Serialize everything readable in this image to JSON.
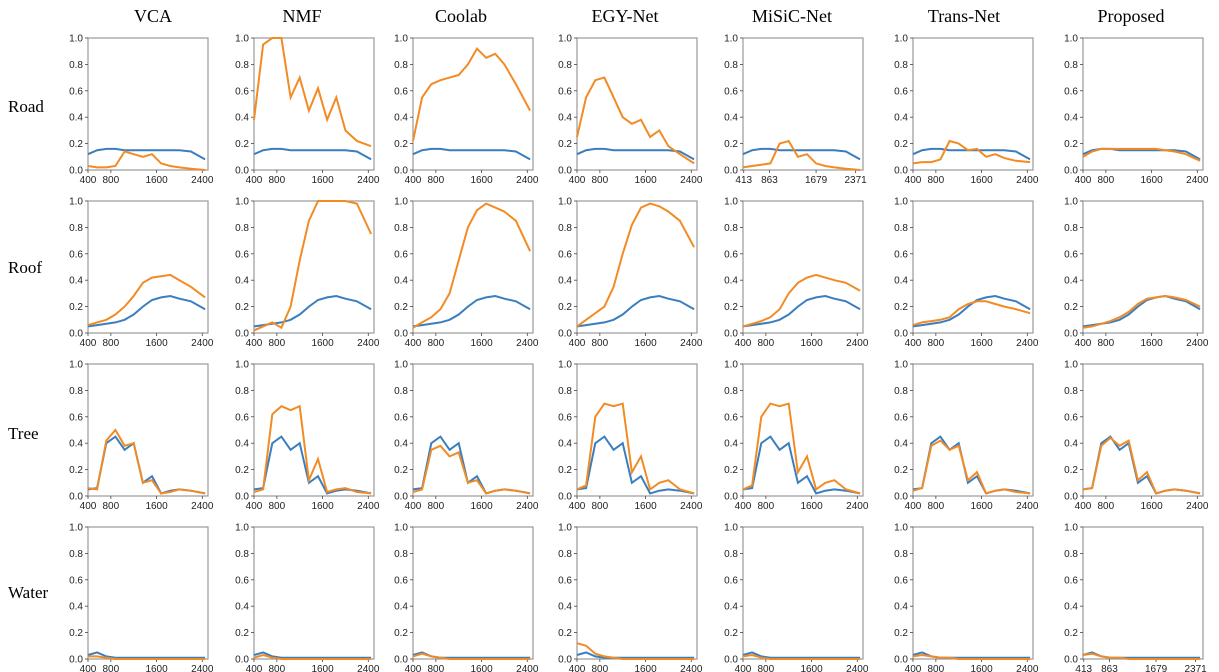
{
  "colors": {
    "reference": "#3a7ebf",
    "estimate": "#f28b24",
    "frame": "#999999"
  },
  "columns": [
    "VCA",
    "NMF",
    "Coolab",
    "EGY-Net",
    "MiSiC-Net",
    "Trans-Net",
    "Proposed"
  ],
  "rows": [
    "Road",
    "Roof",
    "Tree",
    "Water"
  ],
  "chart_data": {
    "type": "line",
    "y_ticks": [
      "0.0",
      "0.2",
      "0.4",
      "0.6",
      "0.8",
      "1.0"
    ],
    "ylim": [
      0,
      1
    ],
    "xlim": [
      400,
      2500
    ],
    "x_ticks_default": [
      "400",
      "800",
      "1600",
      "2400"
    ],
    "x_ticks_alt": [
      "413",
      "863",
      "1679",
      "2371"
    ],
    "reference": {
      "Road": [
        0.12,
        0.15,
        0.16,
        0.16,
        0.15,
        0.15,
        0.15,
        0.15,
        0.15,
        0.15,
        0.15,
        0.14,
        0.08
      ],
      "Roof": [
        0.05,
        0.06,
        0.07,
        0.08,
        0.1,
        0.14,
        0.2,
        0.25,
        0.27,
        0.28,
        0.26,
        0.24,
        0.18
      ],
      "Tree": [
        0.05,
        0.06,
        0.4,
        0.45,
        0.35,
        0.4,
        0.1,
        0.15,
        0.02,
        0.04,
        0.05,
        0.04,
        0.02
      ],
      "Water": [
        0.03,
        0.05,
        0.02,
        0.01,
        0.01,
        0.01,
        0.01,
        0.01,
        0.01,
        0.01,
        0.01,
        0.01,
        0.01
      ]
    },
    "panels": [
      [
        {
          "est": [
            0.03,
            0.02,
            0.02,
            0.03,
            0.14,
            0.12,
            0.1,
            0.12,
            0.05,
            0.03,
            0.02,
            0.01,
            0.0
          ]
        },
        {
          "est": [
            0.06,
            0.08,
            0.1,
            0.14,
            0.2,
            0.28,
            0.38,
            0.42,
            0.43,
            0.44,
            0.4,
            0.35,
            0.27
          ]
        },
        {
          "est": [
            0.06,
            0.05,
            0.42,
            0.5,
            0.38,
            0.4,
            0.1,
            0.12,
            0.02,
            0.03,
            0.05,
            0.04,
            0.02
          ]
        },
        {
          "est": [
            0.02,
            0.02,
            0.01,
            0.0,
            0.0,
            0.0,
            0.0,
            0.0,
            0.0,
            0.0,
            0.0,
            0.0,
            0.0
          ]
        }
      ],
      [
        {
          "est": [
            0.38,
            0.95,
            1.0,
            1.0,
            0.55,
            0.7,
            0.45,
            0.62,
            0.38,
            0.55,
            0.3,
            0.22,
            0.18
          ]
        },
        {
          "est": [
            0.02,
            0.05,
            0.08,
            0.04,
            0.2,
            0.55,
            0.85,
            1.0,
            1.0,
            1.0,
            1.0,
            0.98,
            0.75
          ]
        },
        {
          "est": [
            0.03,
            0.05,
            0.62,
            0.68,
            0.65,
            0.68,
            0.12,
            0.28,
            0.03,
            0.05,
            0.06,
            0.03,
            0.02
          ]
        },
        {
          "est": [
            0.01,
            0.03,
            0.01,
            0.0,
            0.0,
            0.0,
            0.0,
            0.0,
            0.0,
            0.0,
            0.0,
            0.0,
            0.0
          ]
        }
      ],
      [
        {
          "est": [
            0.22,
            0.55,
            0.65,
            0.68,
            0.7,
            0.72,
            0.8,
            0.92,
            0.85,
            0.88,
            0.8,
            0.65,
            0.45
          ]
        },
        {
          "est": [
            0.04,
            0.08,
            0.12,
            0.18,
            0.3,
            0.55,
            0.8,
            0.93,
            0.98,
            0.95,
            0.92,
            0.85,
            0.62
          ]
        },
        {
          "est": [
            0.03,
            0.05,
            0.35,
            0.38,
            0.3,
            0.33,
            0.1,
            0.12,
            0.02,
            0.04,
            0.05,
            0.04,
            0.02
          ]
        },
        {
          "est": [
            0.02,
            0.04,
            0.02,
            0.01,
            0.0,
            0.0,
            0.0,
            0.0,
            0.0,
            0.0,
            0.0,
            0.0,
            0.0
          ]
        }
      ],
      [
        {
          "est": [
            0.25,
            0.55,
            0.68,
            0.7,
            0.55,
            0.4,
            0.35,
            0.38,
            0.25,
            0.3,
            0.18,
            0.12,
            0.05
          ]
        },
        {
          "est": [
            0.05,
            0.1,
            0.15,
            0.2,
            0.35,
            0.6,
            0.82,
            0.95,
            0.98,
            0.96,
            0.92,
            0.85,
            0.65
          ]
        },
        {
          "est": [
            0.05,
            0.08,
            0.6,
            0.7,
            0.68,
            0.7,
            0.18,
            0.3,
            0.05,
            0.1,
            0.12,
            0.05,
            0.02
          ]
        },
        {
          "est": [
            0.12,
            0.1,
            0.04,
            0.02,
            0.01,
            0.0,
            0.0,
            0.0,
            0.0,
            0.0,
            0.0,
            0.0,
            0.0
          ]
        }
      ],
      [
        {
          "est": [
            0.02,
            0.03,
            0.04,
            0.05,
            0.2,
            0.22,
            0.1,
            0.12,
            0.05,
            0.03,
            0.02,
            0.01,
            0.0
          ]
        },
        {
          "est": [
            0.05,
            0.07,
            0.09,
            0.12,
            0.18,
            0.3,
            0.38,
            0.42,
            0.44,
            0.42,
            0.4,
            0.38,
            0.32
          ]
        },
        {
          "est": [
            0.05,
            0.08,
            0.6,
            0.7,
            0.68,
            0.7,
            0.18,
            0.3,
            0.05,
            0.1,
            0.12,
            0.05,
            0.02
          ]
        },
        {
          "est": [
            0.02,
            0.03,
            0.01,
            0.0,
            0.0,
            0.0,
            0.0,
            0.0,
            0.0,
            0.0,
            0.0,
            0.0,
            0.0
          ]
        }
      ],
      [
        {
          "est": [
            0.05,
            0.06,
            0.06,
            0.08,
            0.22,
            0.2,
            0.15,
            0.16,
            0.1,
            0.12,
            0.09,
            0.07,
            0.06
          ]
        },
        {
          "est": [
            0.06,
            0.08,
            0.09,
            0.1,
            0.12,
            0.18,
            0.22,
            0.24,
            0.24,
            0.22,
            0.2,
            0.18,
            0.15
          ]
        },
        {
          "est": [
            0.04,
            0.06,
            0.38,
            0.42,
            0.35,
            0.38,
            0.12,
            0.18,
            0.02,
            0.04,
            0.05,
            0.03,
            0.02
          ]
        },
        {
          "est": [
            0.02,
            0.03,
            0.02,
            0.01,
            0.01,
            0.0,
            0.0,
            0.0,
            0.0,
            0.0,
            0.0,
            0.0,
            0.0
          ]
        }
      ],
      [
        {
          "est": [
            0.1,
            0.14,
            0.16,
            0.16,
            0.16,
            0.16,
            0.16,
            0.16,
            0.16,
            0.15,
            0.14,
            0.12,
            0.07
          ]
        },
        {
          "est": [
            0.04,
            0.05,
            0.07,
            0.09,
            0.12,
            0.16,
            0.22,
            0.26,
            0.27,
            0.28,
            0.27,
            0.25,
            0.2
          ]
        },
        {
          "est": [
            0.05,
            0.06,
            0.38,
            0.44,
            0.38,
            0.42,
            0.12,
            0.18,
            0.02,
            0.04,
            0.05,
            0.04,
            0.02
          ]
        },
        {
          "est": [
            0.03,
            0.04,
            0.02,
            0.01,
            0.01,
            0.0,
            0.0,
            0.0,
            0.0,
            0.0,
            0.0,
            0.0,
            0.0
          ]
        }
      ]
    ],
    "alt_ticks_panels": [
      [
        4,
        0
      ],
      [
        6,
        3
      ]
    ]
  }
}
